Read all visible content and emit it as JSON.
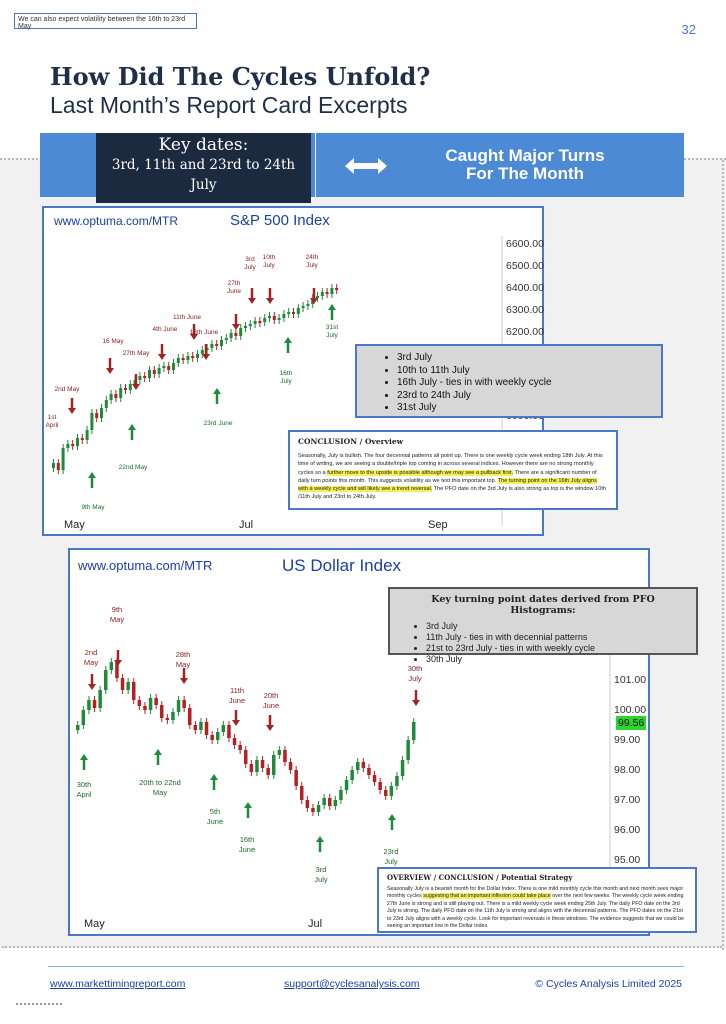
{
  "header": {
    "note": "We can also expect volatility between the 16th to 23rd May",
    "page_number": "32",
    "title_line1": "How Did The Cycles Unfold?",
    "title_line2": "Last Month’s Report Card Excerpts"
  },
  "banner": {
    "key_dates_title": "Key dates:",
    "key_dates_line1": "3rd, 11th and 23rd to 24th",
    "key_dates_line2": "July",
    "caught_line1": "Caught Major Turns",
    "caught_line2": "For The Month",
    "accent_color": "#4d8ad6",
    "dark_color": "#1c2a40"
  },
  "sp500": {
    "url": "www.optuma.com/MTR",
    "title": "S&P 500 Index",
    "y_ticks": [
      "6600.00",
      "6500.00",
      "6400.00",
      "6300.00",
      "6200.00",
      "6000.00"
    ],
    "x_ticks": [
      "May",
      "Jul",
      "Sep"
    ],
    "annotations_red": [
      "1st April",
      "2nd May",
      "16 May",
      "27th May",
      "4th June",
      "11th June",
      "16th June",
      "27th June",
      "3rd July",
      "10th July",
      "24th July"
    ],
    "annotations_green": [
      "9th May",
      "22nd May",
      "23rd June",
      "16th July",
      "31st July"
    ],
    "list": [
      "3rd July",
      "10th to 11th July",
      "16th July - ties in with weekly cycle",
      "23rd to 24th July",
      "31st July"
    ],
    "conclusion_heading": "CONCLUSION / Overview",
    "conclusion_p1": "Seasonally, July is bullish. The four decennial patterns all point up. There is one weekly cycle week ending 18th July. At this time of writing, we are seeing a double/triple top coming in across several indices. However there are no strong monthly cycles so a ",
    "conclusion_hl1": "further move to the upside is possible although we may see a pullback first.",
    "conclusion_p2": " There are a significant number of daily turn points this month. This suggests volatility as we test this important top. ",
    "conclusion_hl2": "The turning point on the 16th July aligns with a weekly cycle and will likely see a trend reversal.",
    "conclusion_p3": " The PFO date on the 3rd July is also strong as top is the window 10th /11th July and 23rd to 24th July."
  },
  "usd": {
    "url": "www.optuma.com/MTR",
    "title": "US Dollar Index",
    "y_ticks": [
      "101.00",
      "100.00",
      "99.00",
      "98.00",
      "97.00",
      "96.00",
      "95.00"
    ],
    "current_price": "99.56",
    "x_ticks": [
      "May",
      "Jul"
    ],
    "annotations_red": [
      "2nd May",
      "9th May",
      "28th May",
      "11th June",
      "20th June",
      "30th July"
    ],
    "annotations_green": [
      "30th April",
      "20th to 22nd May",
      "5th June",
      "16th June",
      "3rd July",
      "23rd July"
    ],
    "key_heading": "Key turning point dates derived from PFO Histograms:",
    "key_list": [
      "3rd July",
      "11th July - ties in with decennial patterns",
      "21st to 23rd July - ties in with weekly cycle",
      "30th July"
    ],
    "ov_heading": "OVERVIEW / CONCLUSION / Potential Strategy",
    "ov_p1": "Seasonally July is a bearish month for the Dollar Index. There is one mild monthly cycle this month and next month sees major monthly cycles ",
    "ov_hl": "suggesting that an important inflexion could take place",
    "ov_p2": " over the next few weeks. The weekly cycle week ending 27th June is strong and is still playing out. There is a mild weekly cycle week ending 25th July. The daily PFO date on the 3rd July is strong. The daily PFO date on the 11th July is strong and aligns with the decennial patterns. The PFO dates on the 21st to 23rd July aligns with a weekly cycle. Look for important reversals in these windows. The evidence suggests that we could be seeing an important low in the Dollar Index."
  },
  "footer": {
    "link1": "www.markettimingreport.com",
    "link2": "support@cyclesanalysis.com",
    "copyright": "© Cycles Analysis Limited 2025"
  }
}
